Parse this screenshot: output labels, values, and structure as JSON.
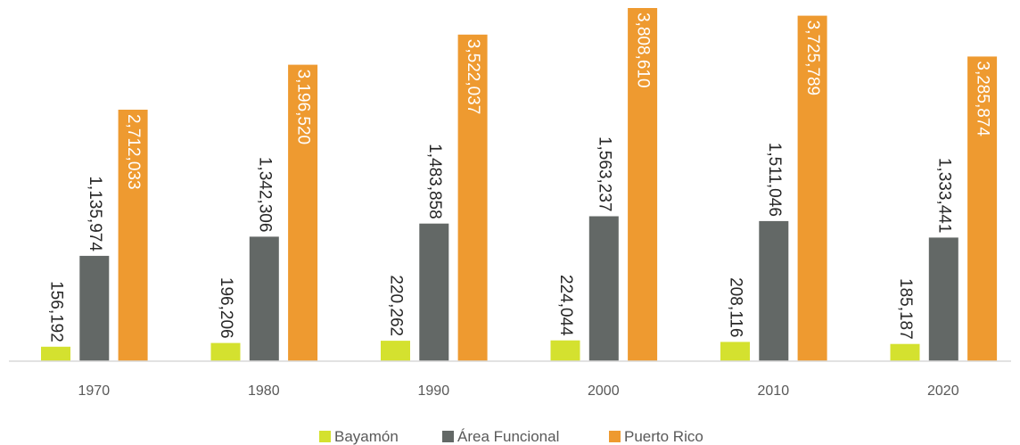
{
  "chart_data": {
    "type": "bar",
    "title": "",
    "xlabel": "",
    "ylabel": "",
    "categories": [
      "1970",
      "1980",
      "1990",
      "2000",
      "2010",
      "2020"
    ],
    "series": [
      {
        "name": "Bayamón",
        "color": "#d4e12f",
        "values": [
          156192,
          196206,
          220262,
          224044,
          208116,
          185187
        ],
        "labels": [
          "156,192",
          "196,206",
          "220,262",
          "224,044",
          "208,116",
          "185,187"
        ]
      },
      {
        "name": "Área Funcional",
        "color": "#636866",
        "values": [
          1135974,
          1342306,
          1483858,
          1563237,
          1511046,
          1333441
        ],
        "labels": [
          "1,135,974",
          "1,342,306",
          "1,483,858",
          "1,563,237",
          "1,511,046",
          "1,333,441"
        ]
      },
      {
        "name": "Puerto Rico",
        "color": "#ee9a30",
        "values": [
          2712033,
          3196520,
          3522037,
          3808610,
          3725789,
          3285874
        ],
        "labels": [
          "2,712,033",
          "3,196,520",
          "3,522,037",
          "3,808,610",
          "3,725,789",
          "3,285,874"
        ]
      }
    ],
    "ylim": [
      0,
      3808610
    ],
    "grid": false,
    "legend_position": "bottom"
  }
}
